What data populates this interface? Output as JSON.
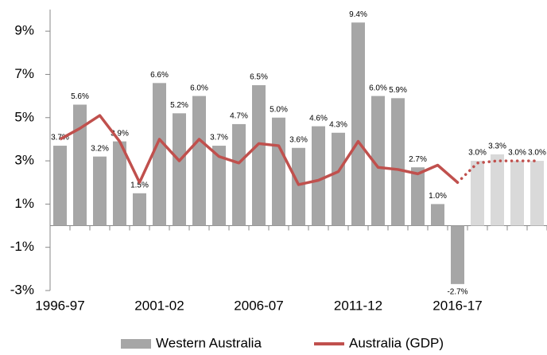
{
  "chart_data": {
    "type": "bar",
    "categories": [
      "1996-97",
      null,
      null,
      null,
      null,
      "2001-02",
      null,
      null,
      null,
      null,
      "2006-07",
      null,
      null,
      null,
      null,
      "2011-12",
      null,
      null,
      null,
      null,
      "2016-17",
      null,
      null,
      null,
      null
    ],
    "series": [
      {
        "name": "Western Australia",
        "type": "bar",
        "color": "#a6a6a6",
        "projected_color": "#d9d9d9",
        "values": [
          3.7,
          5.6,
          3.2,
          3.9,
          1.5,
          6.6,
          5.2,
          6.0,
          3.7,
          4.7,
          6.5,
          5.0,
          3.6,
          4.6,
          4.3,
          9.4,
          6.0,
          5.9,
          2.7,
          1.0,
          -2.7,
          3.0,
          3.3,
          3.0,
          3.0
        ],
        "value_labels": [
          "3.7%",
          "5.6%",
          "3.2%",
          "3.9%",
          "1.5%",
          "6.6%",
          "5.2%",
          "6.0%",
          "3.7%",
          "4.7%",
          "6.5%",
          "5.0%",
          "3.6%",
          "4.6%",
          "4.3%",
          "9.4%",
          "6.0%",
          "5.9%",
          "2.7%",
          "1.0%",
          "-2.7%",
          "3.0%",
          "3.3%",
          "3.0%",
          "3.0%"
        ]
      },
      {
        "name": "Australia (GDP)",
        "type": "line",
        "color": "#c0504d",
        "values": [
          4.0,
          4.5,
          5.1,
          3.9,
          2.0,
          4.0,
          3.0,
          4.0,
          3.2,
          2.9,
          3.8,
          3.7,
          1.9,
          2.1,
          2.5,
          3.9,
          2.7,
          2.6,
          2.4,
          2.8,
          2.0,
          2.9,
          3.0,
          3.0,
          3.0
        ]
      }
    ],
    "projected_from": 21,
    "ylim": [
      -3,
      10
    ],
    "yticks": [
      {
        "value": -3,
        "label": "-3%"
      },
      {
        "value": -1,
        "label": "-1%"
      },
      {
        "value": 1,
        "label": "1%"
      },
      {
        "value": 3,
        "label": "3%"
      },
      {
        "value": 5,
        "label": "5%"
      },
      {
        "value": 7,
        "label": "7%"
      },
      {
        "value": 9,
        "label": "9%"
      }
    ],
    "legend": "bottom"
  }
}
